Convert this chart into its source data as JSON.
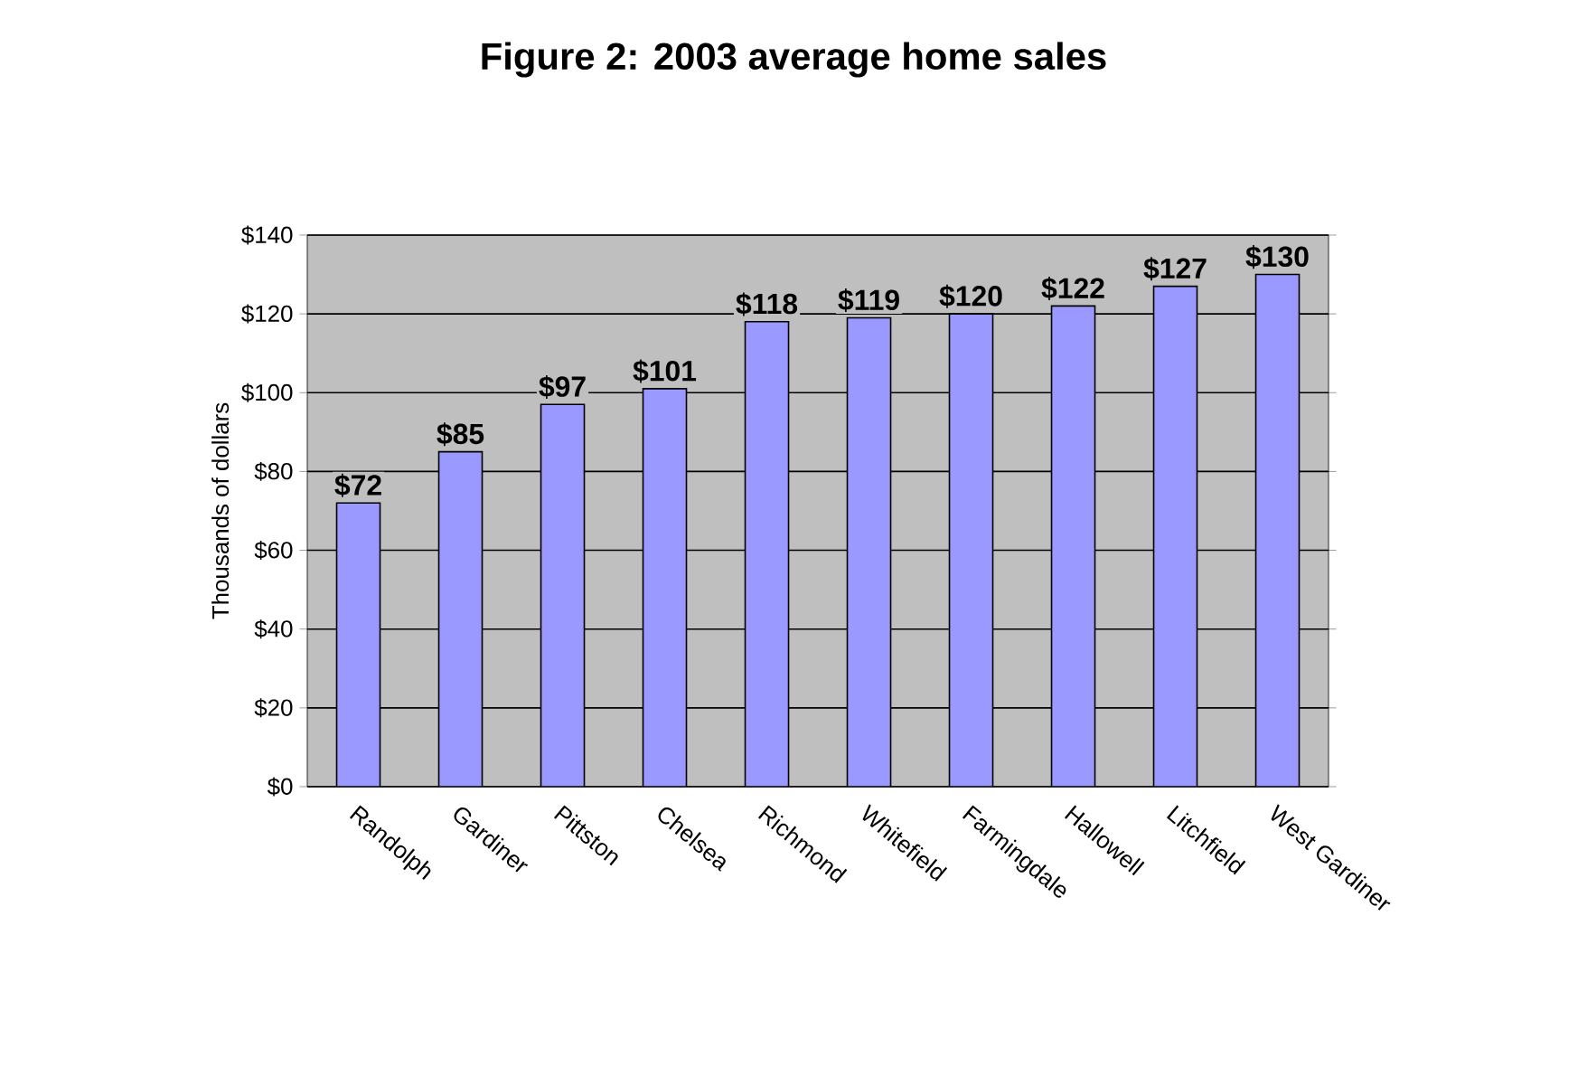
{
  "chart_data": {
    "type": "bar",
    "title": "Figure 2: 2003 average home sales",
    "ylabel": "Thousands of dollars",
    "categories": [
      "Randolph",
      "Gardiner",
      "Pittston",
      "Chelsea",
      "Richmond",
      "Whitefield",
      "Farmingdale",
      "Hallowell",
      "Litchfield",
      "West Gardiner"
    ],
    "values": [
      72,
      85,
      97,
      101,
      118,
      119,
      120,
      122,
      127,
      130
    ],
    "value_labels": [
      "$72",
      "$85",
      "$97",
      "$101",
      "$118",
      "$119",
      "$120",
      "$122",
      "$127",
      "$130"
    ],
    "color": "#9999ff",
    "ylim": [
      0,
      140
    ],
    "yticks": [
      {
        "value": 0,
        "label": "$0"
      },
      {
        "value": 20,
        "label": "$20"
      },
      {
        "value": 40,
        "label": "$40"
      },
      {
        "value": 60,
        "label": "$60"
      },
      {
        "value": 80,
        "label": "$80"
      },
      {
        "value": 100,
        "label": "$100"
      },
      {
        "value": 120,
        "label": "$120"
      },
      {
        "value": 140,
        "label": "$140"
      }
    ],
    "grid": "y"
  }
}
